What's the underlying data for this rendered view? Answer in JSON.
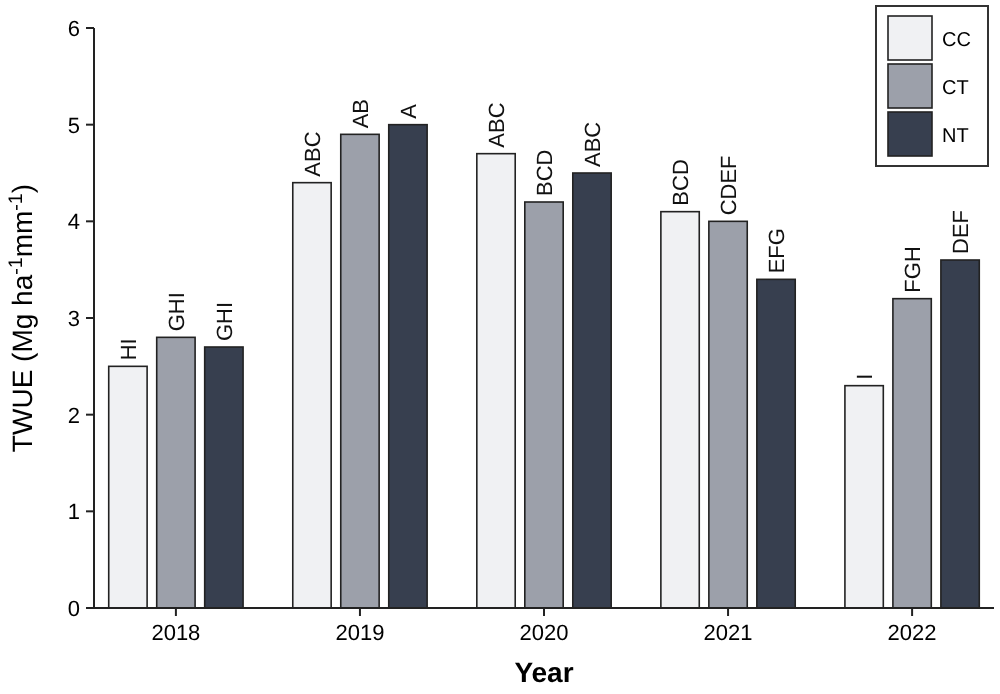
{
  "chart_data": {
    "type": "bar",
    "xlabel": "Year",
    "ylabel": "TWUE (Mg ha$^{-1}$mm$^{-1}$)",
    "categories": [
      "2018",
      "2019",
      "2020",
      "2021",
      "2022"
    ],
    "series": [
      {
        "name": "CC",
        "color": "#f0f1f3",
        "values": [
          2.5,
          4.4,
          4.7,
          4.1,
          2.3
        ]
      },
      {
        "name": "CT",
        "color": "#9ca0aa",
        "values": [
          2.8,
          4.9,
          4.2,
          4.0,
          3.2
        ]
      },
      {
        "name": "NT",
        "color": "#373f4f",
        "values": [
          2.7,
          5.0,
          4.5,
          3.4,
          3.6
        ]
      }
    ],
    "ylim": [
      0,
      6
    ],
    "yticks": [
      0,
      1,
      2,
      3,
      4,
      5,
      6
    ],
    "grid": false,
    "legend": "top right",
    "annotations": [
      "HI",
      "GHI",
      "GHI",
      "ABC",
      "AB",
      "A",
      "ABC",
      "BCD",
      "ABC",
      "BCD",
      "CDEF",
      "EFG",
      "I",
      "FGH",
      "DEF"
    ]
  }
}
